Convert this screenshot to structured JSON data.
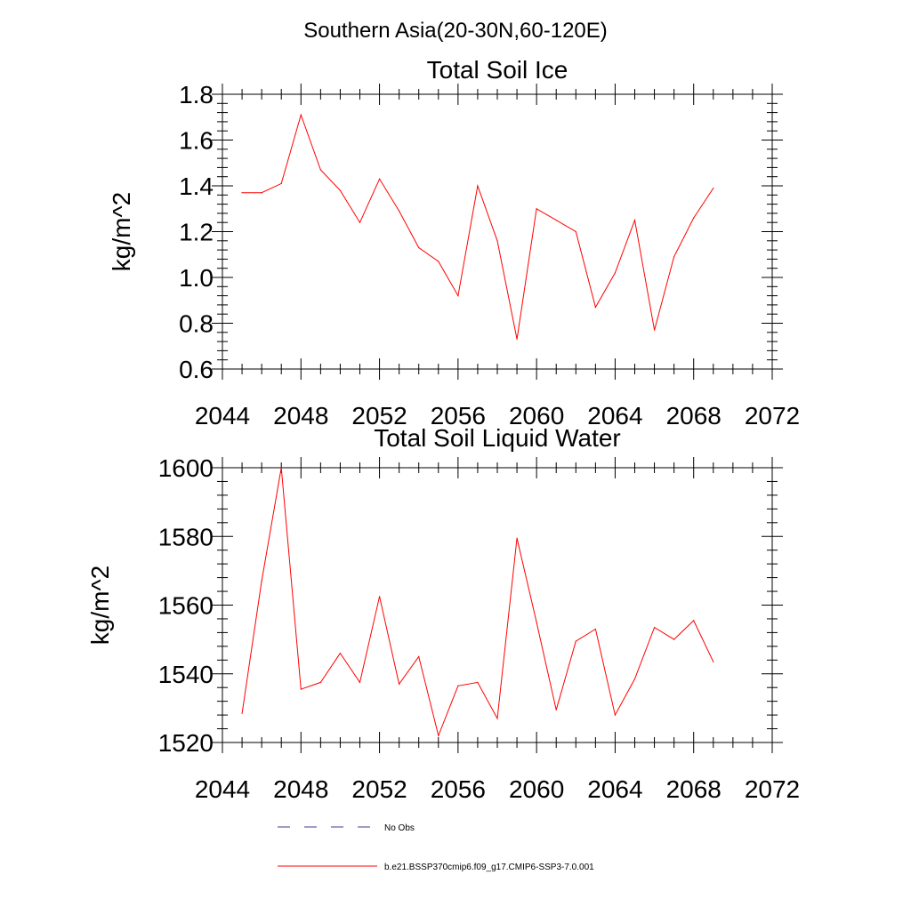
{
  "suptitle": "Southern Asia(20-30N,60-120E)",
  "legend": {
    "items": [
      {
        "label": "No Obs",
        "style": "dashed",
        "color": "#3b3b8f"
      },
      {
        "label": "b.e21.BSSP370cmip6.f09_g17.CMIP6-SSP3-7.0.001",
        "style": "solid",
        "color": "#ff0000"
      }
    ]
  },
  "chart_data": [
    {
      "type": "line",
      "title": "Total Soil Ice",
      "ylabel": "kg/m^2",
      "xlabel": "",
      "xlim": [
        2044,
        2072
      ],
      "ylim": [
        0.6,
        1.8
      ],
      "xticks": [
        "2044",
        "2048",
        "2052",
        "2056",
        "2060",
        "2064",
        "2068",
        "2072"
      ],
      "yticks": [
        "0.6",
        "0.8",
        "1.0",
        "1.2",
        "1.4",
        "1.6",
        "1.8"
      ],
      "grid": false,
      "series": [
        {
          "color": "#ff0000",
          "x": [
            2045,
            2046,
            2047,
            2048,
            2049,
            2050,
            2051,
            2052,
            2053,
            2054,
            2055,
            2056,
            2057,
            2058,
            2059,
            2060,
            2061,
            2062,
            2063,
            2064,
            2065,
            2066,
            2067,
            2068,
            2069
          ],
          "y": [
            1.37,
            1.37,
            1.41,
            1.71,
            1.47,
            1.38,
            1.24,
            1.43,
            1.29,
            1.13,
            1.07,
            0.92,
            1.4,
            1.16,
            0.73,
            1.3,
            1.25,
            1.2,
            0.87,
            1.02,
            1.25,
            0.77,
            1.09,
            1.26,
            1.39
          ]
        }
      ]
    },
    {
      "type": "line",
      "title": "Total Soil Liquid Water",
      "ylabel": "kg/m^2",
      "xlabel": "",
      "xlim": [
        2044,
        2072
      ],
      "ylim": [
        1520,
        1600
      ],
      "xticks": [
        "2044",
        "2048",
        "2052",
        "2056",
        "2060",
        "2064",
        "2068",
        "2072"
      ],
      "yticks": [
        "1520",
        "1540",
        "1560",
        "1580",
        "1600"
      ],
      "grid": false,
      "series": [
        {
          "color": "#ff0000",
          "x": [
            2045,
            2046,
            2047,
            2048,
            2049,
            2050,
            2051,
            2052,
            2053,
            2054,
            2055,
            2056,
            2057,
            2058,
            2059,
            2060,
            2061,
            2062,
            2063,
            2064,
            2065,
            2066,
            2067,
            2068,
            2069
          ],
          "y": [
            1528.5,
            1567,
            1600,
            1535.5,
            1537.5,
            1546,
            1537.5,
            1562.5,
            1537,
            1545,
            1522,
            1536.5,
            1537.5,
            1527,
            1579.5,
            1555,
            1529.5,
            1549.5,
            1553,
            1528,
            1538.5,
            1553.5,
            1550,
            1555.5,
            1543.5
          ]
        }
      ]
    }
  ]
}
